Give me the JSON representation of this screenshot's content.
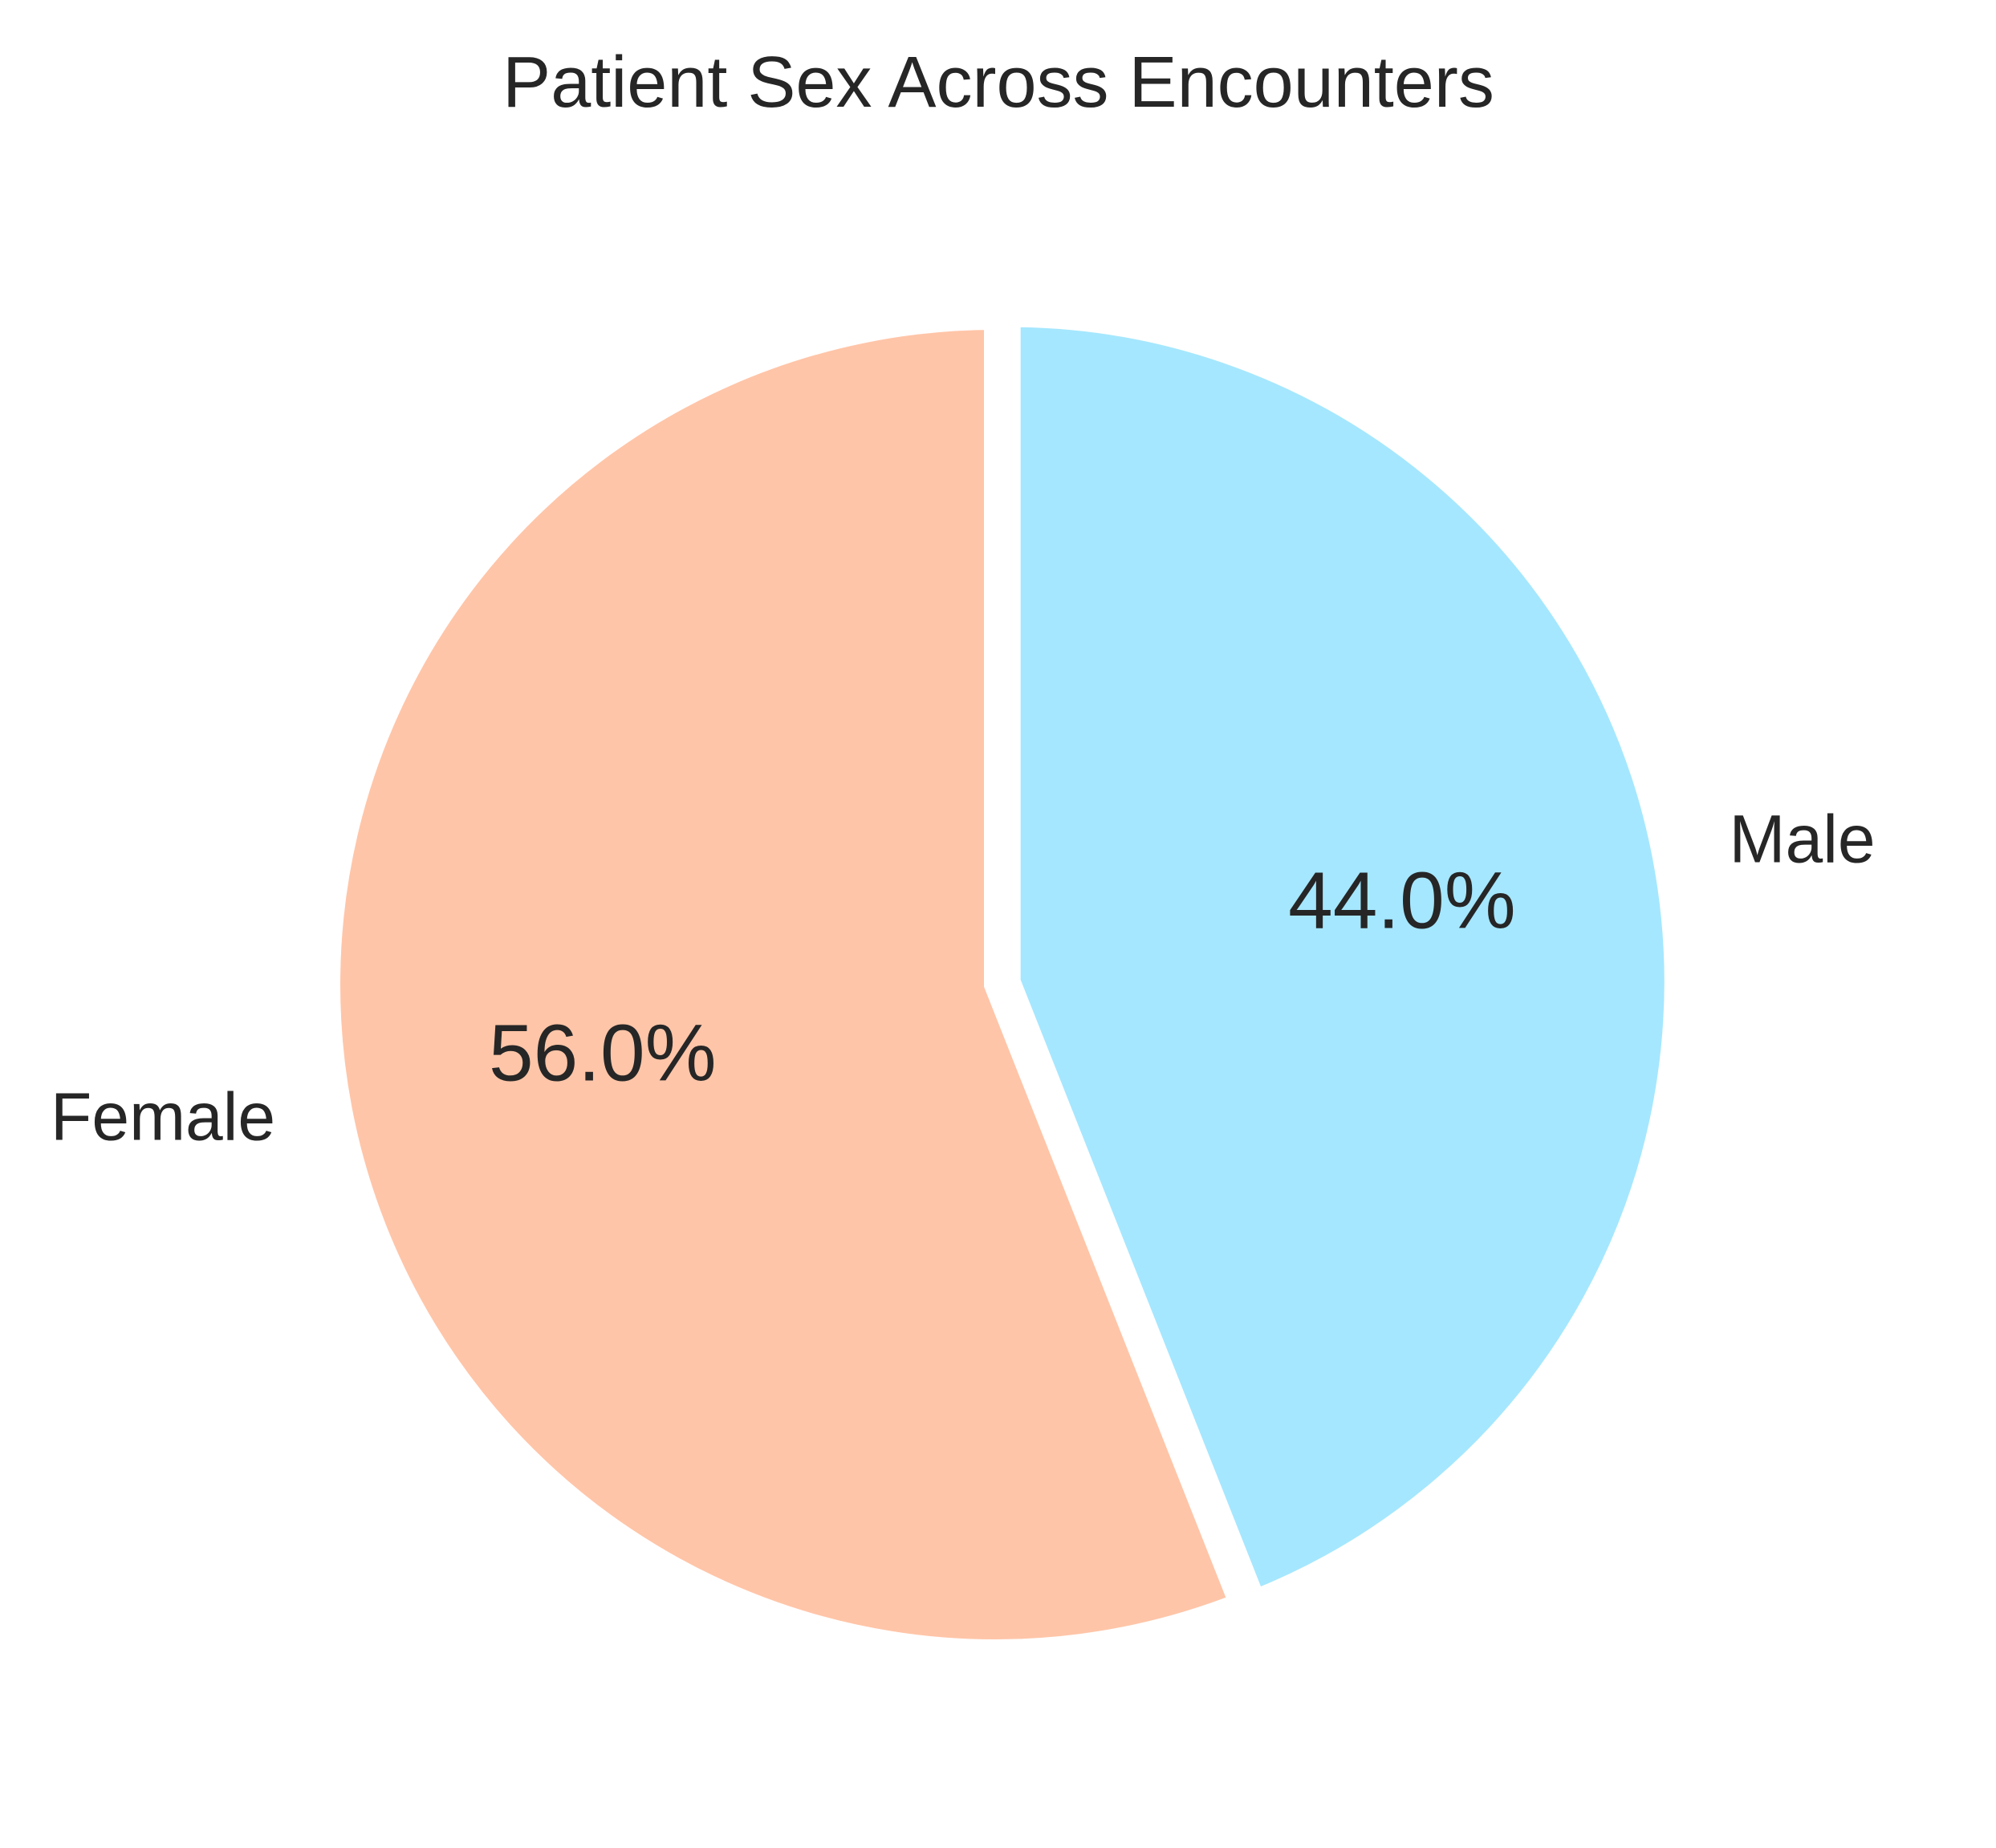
{
  "chart_data": {
    "type": "pie",
    "title": "Patient Sex Across Encounters",
    "start_angle": 90,
    "direction": "clockwise",
    "slices": [
      {
        "label": "Male",
        "value": 44.0,
        "pct_label": "44.0%",
        "color": "#a5e7ff",
        "explode": true
      },
      {
        "label": "Female",
        "value": 56.0,
        "pct_label": "56.0%",
        "color": "#ffc5a8",
        "explode": false
      }
    ]
  }
}
